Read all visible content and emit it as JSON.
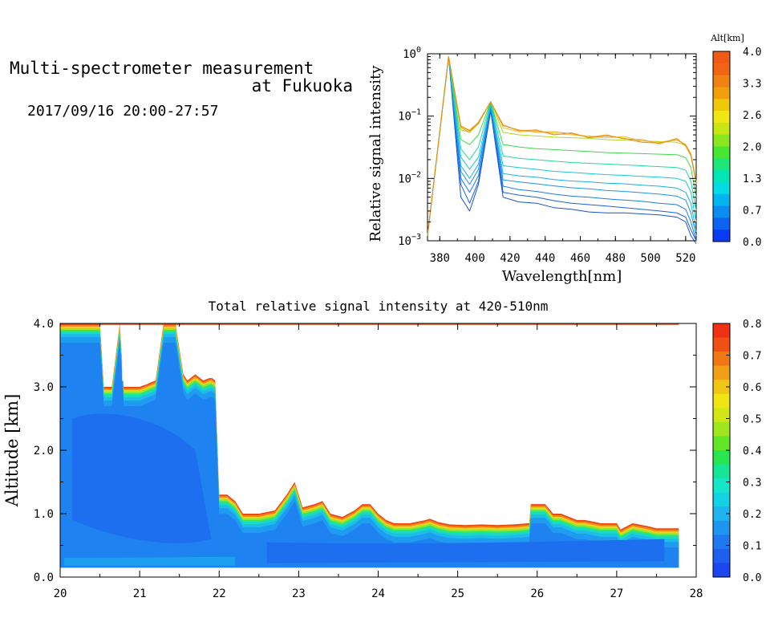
{
  "header": {
    "title_line1": "Multi-spectrometer measurement",
    "title_line2": "at Fukuoka",
    "datetime": "2017/09/16 20:00-27:57"
  },
  "chart_data": [
    {
      "type": "line",
      "title": "",
      "xlabel": "Wavelength[nm]",
      "ylabel": "Relative signal intensity",
      "yscale": "log",
      "xlim": [
        373,
        526
      ],
      "ylim": [
        0.001,
        1
      ],
      "xticks": [
        380,
        400,
        420,
        440,
        460,
        480,
        500,
        520
      ],
      "yticks": [
        {
          "label_base": "10",
          "label_exp": "0",
          "value": 1
        },
        {
          "label_base": "10",
          "label_exp": "−1",
          "value": 0.1
        },
        {
          "label_base": "10",
          "label_exp": "−2",
          "value": 0.01
        },
        {
          "label_base": "10",
          "label_exp": "−3",
          "value": 0.001
        }
      ],
      "x": [
        373,
        385,
        392,
        397,
        402,
        409,
        416,
        425,
        435,
        445,
        455,
        465,
        475,
        485,
        495,
        505,
        515,
        520,
        523,
        526
      ],
      "series": [
        {
          "alt": 0.2,
          "values": [
            0.0012,
            0.9,
            0.005,
            0.003,
            0.008,
            0.12,
            0.005,
            0.0042,
            0.004,
            0.0034,
            0.0032,
            0.0029,
            0.0028,
            0.0028,
            0.0027,
            0.0026,
            0.0024,
            0.002,
            0.0012,
            0.0009
          ]
        },
        {
          "alt": 0.45,
          "values": [
            0.0012,
            0.9,
            0.008,
            0.004,
            0.009,
            0.13,
            0.006,
            0.0054,
            0.005,
            0.0044,
            0.004,
            0.0038,
            0.0036,
            0.0034,
            0.0032,
            0.003,
            0.0028,
            0.0024,
            0.0015,
            0.001
          ]
        },
        {
          "alt": 0.7,
          "values": [
            0.0012,
            0.9,
            0.01,
            0.006,
            0.011,
            0.14,
            0.0075,
            0.0066,
            0.0062,
            0.0056,
            0.0052,
            0.005,
            0.0047,
            0.0045,
            0.0043,
            0.004,
            0.0038,
            0.0032,
            0.002,
            0.001
          ]
        },
        {
          "alt": 0.95,
          "values": [
            0.0012,
            0.9,
            0.013,
            0.008,
            0.014,
            0.15,
            0.0095,
            0.0088,
            0.0082,
            0.0076,
            0.0071,
            0.0068,
            0.0064,
            0.0062,
            0.0059,
            0.0056,
            0.0052,
            0.0045,
            0.0028,
            0.0012
          ]
        },
        {
          "alt": 1.2,
          "values": [
            0.0012,
            0.9,
            0.016,
            0.01,
            0.017,
            0.15,
            0.012,
            0.011,
            0.0105,
            0.0096,
            0.0091,
            0.0088,
            0.0084,
            0.0082,
            0.0078,
            0.0075,
            0.007,
            0.006,
            0.004,
            0.0014
          ]
        },
        {
          "alt": 1.5,
          "values": [
            0.0012,
            0.9,
            0.022,
            0.014,
            0.022,
            0.16,
            0.016,
            0.015,
            0.014,
            0.013,
            0.0125,
            0.012,
            0.0115,
            0.0112,
            0.0108,
            0.0105,
            0.01,
            0.009,
            0.006,
            0.002
          ]
        },
        {
          "alt": 1.9,
          "values": [
            0.0012,
            0.9,
            0.03,
            0.02,
            0.032,
            0.17,
            0.023,
            0.021,
            0.02,
            0.019,
            0.018,
            0.0175,
            0.017,
            0.0165,
            0.016,
            0.0155,
            0.015,
            0.0135,
            0.009,
            0.003
          ]
        },
        {
          "alt": 2.3,
          "values": [
            0.0012,
            0.9,
            0.042,
            0.035,
            0.05,
            0.17,
            0.035,
            0.032,
            0.03,
            0.029,
            0.028,
            0.027,
            0.026,
            0.0255,
            0.025,
            0.0245,
            0.024,
            0.0215,
            0.015,
            0.005
          ]
        },
        {
          "alt": 2.8,
          "values": [
            0.0012,
            0.9,
            0.06,
            0.055,
            0.075,
            0.17,
            0.055,
            0.05,
            0.048,
            0.046,
            0.045,
            0.044,
            0.042,
            0.041,
            0.04,
            0.039,
            0.038,
            0.034,
            0.024,
            0.008
          ]
        },
        {
          "alt": 3.3,
          "values": [
            0.0012,
            0.9,
            0.07,
            0.06,
            0.08,
            0.17,
            0.065,
            0.056,
            0.058,
            0.052,
            0.05,
            0.048,
            0.045,
            0.047,
            0.04,
            0.038,
            0.042,
            0.035,
            0.025,
            0.009
          ]
        },
        {
          "alt": 3.7,
          "values": [
            0.0012,
            0.9,
            0.065,
            0.055,
            0.08,
            0.17,
            0.07,
            0.06,
            0.055,
            0.056,
            0.052,
            0.046,
            0.05,
            0.043,
            0.042,
            0.036,
            0.044,
            0.033,
            0.023,
            0.0085
          ]
        },
        {
          "alt": 4.0,
          "values": [
            0.0012,
            0.9,
            0.068,
            0.058,
            0.078,
            0.17,
            0.072,
            0.058,
            0.06,
            0.05,
            0.054,
            0.045,
            0.048,
            0.044,
            0.038,
            0.037,
            0.042,
            0.034,
            0.024,
            0.0088
          ]
        }
      ],
      "colorbar": {
        "label": "Alt[km]",
        "ticks": [
          "4.0",
          "3.3",
          "2.6",
          "2.0",
          "1.3",
          "0.7",
          "0.0"
        ],
        "colors": [
          "#0b3cf5",
          "#0a64f0",
          "#0a8cf0",
          "#00b4f0",
          "#00dce6",
          "#00e6b4",
          "#1ee678",
          "#46e632",
          "#8ce61e",
          "#c8e614",
          "#f0e614",
          "#f0c80a",
          "#f0a00a",
          "#f08214",
          "#f06414",
          "#f05a14"
        ]
      }
    },
    {
      "type": "heatmap",
      "title": "Total relative signal intensity at 420-510nm",
      "xlabel": "",
      "ylabel": "Altitude [km]",
      "xlim": [
        20,
        28
      ],
      "ylim": [
        0.0,
        4.0
      ],
      "xticks": [
        "20",
        "21",
        "22",
        "23",
        "24",
        "25",
        "26",
        "27",
        "28"
      ],
      "yticks": [
        "0.0",
        "1.0",
        "2.0",
        "3.0",
        "4.0"
      ],
      "zlim": [
        0.0,
        0.8
      ],
      "colorbar": {
        "ticks": [
          "0.8",
          "0.7",
          "0.6",
          "0.5",
          "0.4",
          "0.3",
          "0.2",
          "0.1",
          "0.0"
        ],
        "colors": [
          "#1e46f0",
          "#1e5ff0",
          "#1e78f0",
          "#1e96f0",
          "#1eb4f0",
          "#14d2e6",
          "#14e6c8",
          "#14e696",
          "#28e650",
          "#64e628",
          "#a0e61e",
          "#d2e614",
          "#f0e614",
          "#f0c814",
          "#f0a014",
          "#f07814",
          "#f05014",
          "#f03214"
        ]
      },
      "cloud_top_km": {
        "t": [
          20.0,
          20.3,
          20.5,
          20.55,
          20.65,
          20.75,
          20.8,
          21.0,
          21.2,
          21.3,
          21.45,
          21.55,
          21.6,
          21.7,
          21.8,
          21.9,
          21.95,
          22.0,
          22.1,
          22.2,
          22.3,
          22.5,
          22.7,
          22.85,
          22.95,
          23.05,
          23.2,
          23.3,
          23.4,
          23.55,
          23.7,
          23.8,
          23.9,
          24.0,
          24.1,
          24.2,
          24.4,
          24.6,
          24.65,
          24.75,
          24.9,
          25.1,
          25.3,
          25.5,
          25.7,
          25.9,
          25.92,
          26.1,
          26.2,
          26.3,
          26.5,
          26.6,
          26.8,
          27.0,
          27.05,
          27.2,
          27.4,
          27.5,
          27.6,
          27.7,
          27.78
        ],
        "top": [
          4.0,
          4.0,
          4.0,
          3.0,
          3.0,
          4.0,
          3.0,
          3.0,
          3.1,
          4.0,
          4.0,
          3.2,
          3.1,
          3.2,
          3.1,
          3.15,
          3.1,
          1.3,
          1.3,
          1.2,
          1.0,
          1.0,
          1.05,
          1.3,
          1.5,
          1.1,
          1.15,
          1.2,
          1.0,
          0.95,
          1.05,
          1.15,
          1.15,
          1.0,
          0.9,
          0.85,
          0.85,
          0.9,
          0.92,
          0.87,
          0.83,
          0.82,
          0.83,
          0.82,
          0.83,
          0.85,
          1.15,
          1.15,
          1.0,
          1.0,
          0.9,
          0.9,
          0.85,
          0.85,
          0.75,
          0.85,
          0.8,
          0.77,
          0.77,
          0.77,
          0.77
        ]
      },
      "data_bottom_km": 0.15
    }
  ]
}
